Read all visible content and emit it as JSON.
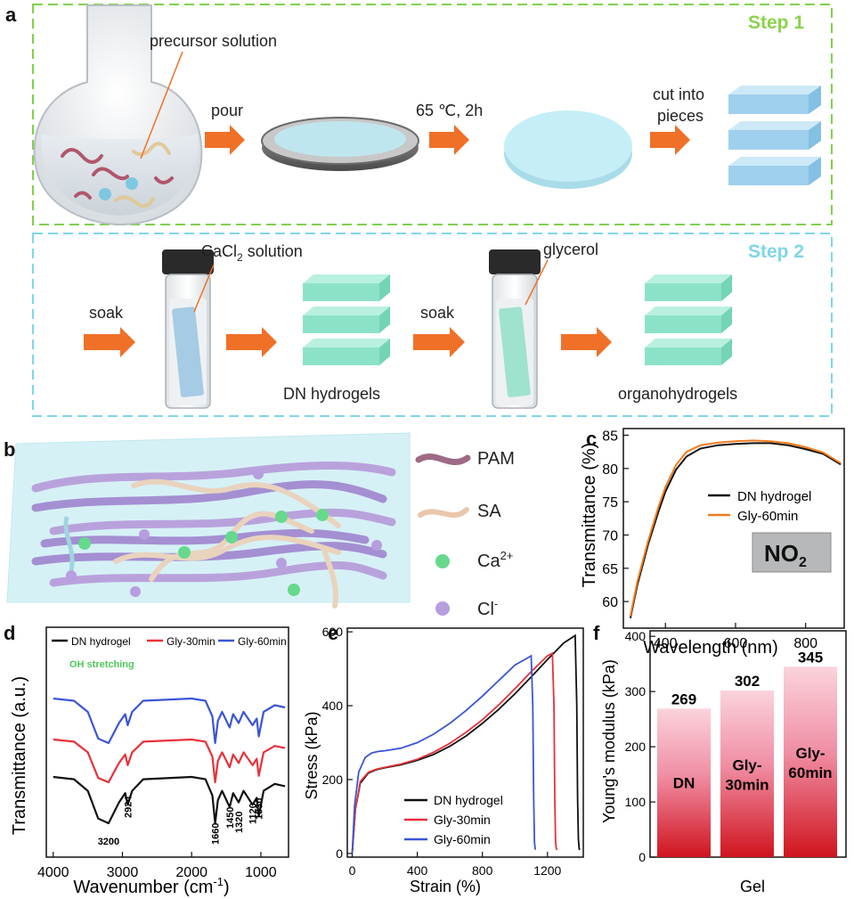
{
  "panel_a": {
    "label": "a",
    "step1": {
      "title": "Step 1",
      "precursor": "precursor solution",
      "pour": "pour",
      "condition": "65 ℃, 2h",
      "cut1": "cut into",
      "cut2": "pieces"
    },
    "step2": {
      "title": "Step 2",
      "soak1": "soak",
      "cacl2_a": "CaCl",
      "cacl2_sub": "2",
      "cacl2_b": " solution",
      "dn": "DN hydrogels",
      "soak2": "soak",
      "glycerol": "glycerol",
      "organo": "organohydrogels"
    }
  },
  "panel_b": {
    "label": "b",
    "legend": {
      "pam": "PAM",
      "sa": "SA",
      "ca": "Ca",
      "ca_sup": "2+",
      "cl": "Cl",
      "cl_sup": "-"
    }
  },
  "colors": {
    "green_dash": "#7fd14b",
    "cyan_dash": "#7fd6e8",
    "arrow": "#f07028",
    "black": "#111111",
    "red": "#e8313a",
    "blue": "#3b55d6",
    "orange": "#f07b1d"
  },
  "chart_data": [
    {
      "panel": "c",
      "type": "line",
      "xlabel": "Wavelength (nm)",
      "ylabel": "Transmittance (%)",
      "xlim": [
        280,
        910
      ],
      "ylim": [
        56,
        86
      ],
      "xticks": [
        400,
        600,
        800
      ],
      "yticks": [
        60,
        65,
        70,
        75,
        80,
        85
      ],
      "legend": "center-right",
      "inset_text": "NO",
      "inset_sub": "2",
      "series": [
        {
          "name": "DN hydrogel",
          "color": "#111111",
          "x": [
            300,
            320,
            350,
            380,
            400,
            430,
            460,
            500,
            550,
            600,
            650,
            700,
            750,
            800,
            850,
            900
          ],
          "y": [
            57.5,
            62.5,
            68.5,
            73.5,
            76.5,
            79.8,
            81.8,
            83.0,
            83.5,
            83.7,
            83.8,
            83.8,
            83.5,
            82.9,
            82.2,
            80.6
          ]
        },
        {
          "name": "Gly-60min",
          "color": "#f07b1d",
          "x": [
            300,
            320,
            350,
            380,
            400,
            430,
            460,
            500,
            550,
            600,
            650,
            700,
            750,
            800,
            850,
            900
          ],
          "y": [
            57.8,
            63.0,
            69.0,
            74.2,
            77.2,
            80.5,
            82.5,
            83.5,
            83.9,
            84.1,
            84.2,
            84.1,
            83.8,
            83.2,
            82.4,
            80.8
          ]
        }
      ]
    },
    {
      "panel": "d",
      "type": "line",
      "xlabel": "Wavenumber (cm",
      "xlabel_sup": "-1",
      "xlabel_end": ")",
      "ylabel": "Transmittance (a.u.)",
      "xlim": [
        4100,
        600
      ],
      "xticks": [
        4000,
        3000,
        2000,
        1000
      ],
      "annotation": "OH stretching",
      "peak_labels": [
        "3200",
        "2924",
        "1660",
        "1450",
        "1320",
        "1120",
        "1030"
      ],
      "series": [
        {
          "name": "DN hydrogel",
          "color": "#111111"
        },
        {
          "name": "Gly-30min",
          "color": "#e8313a"
        },
        {
          "name": "Gly-60min",
          "color": "#3b55d6"
        }
      ]
    },
    {
      "panel": "e",
      "type": "line",
      "xlabel": "Strain (%)",
      "ylabel": "Stress (kPa)",
      "xlim": [
        -30,
        1420
      ],
      "ylim": [
        -10,
        610
      ],
      "xticks": [
        0,
        400,
        800,
        1200
      ],
      "yticks": [
        0,
        200,
        400,
        600
      ],
      "legend": "bottom-right",
      "series": [
        {
          "name": "DN hydrogel",
          "color": "#111111",
          "x": [
            0,
            20,
            50,
            100,
            150,
            200,
            300,
            400,
            500,
            600,
            700,
            800,
            900,
            1000,
            1100,
            1200,
            1300,
            1370,
            1380,
            1385,
            1390,
            1395,
            1400
          ],
          "y": [
            0,
            120,
            190,
            218,
            227,
            232,
            240,
            252,
            268,
            290,
            318,
            352,
            390,
            432,
            478,
            525,
            570,
            590,
            400,
            150,
            40,
            12,
            10
          ]
        },
        {
          "name": "Gly-30min",
          "color": "#e8313a",
          "x": [
            0,
            20,
            50,
            100,
            150,
            200,
            300,
            400,
            500,
            600,
            700,
            800,
            900,
            1000,
            1100,
            1200,
            1230,
            1240,
            1245,
            1250,
            1255,
            1260
          ],
          "y": [
            0,
            120,
            195,
            220,
            228,
            233,
            242,
            255,
            274,
            298,
            328,
            362,
            402,
            446,
            492,
            535,
            542,
            400,
            150,
            30,
            12,
            10
          ]
        },
        {
          "name": "Gly-60min",
          "color": "#3b55d6",
          "x": [
            0,
            15,
            40,
            80,
            120,
            160,
            200,
            300,
            400,
            500,
            600,
            700,
            800,
            900,
            1000,
            1100,
            1110,
            1115,
            1120,
            1125
          ],
          "y": [
            0,
            130,
            220,
            260,
            272,
            276,
            278,
            285,
            300,
            323,
            352,
            387,
            426,
            468,
            510,
            535,
            400,
            150,
            30,
            10
          ]
        }
      ]
    },
    {
      "panel": "f",
      "type": "bar",
      "xlabel": "Gel",
      "ylabel": "Young's modulus (kPa)",
      "ylim": [
        0,
        410
      ],
      "yticks": [
        0,
        100,
        200,
        300,
        400
      ],
      "categories": [
        [
          "DN"
        ],
        [
          "Gly-",
          "30min"
        ],
        [
          "Gly-",
          "60min"
        ]
      ],
      "values": [
        269,
        302,
        345
      ],
      "value_labels": [
        "269",
        "302",
        "345"
      ]
    }
  ]
}
